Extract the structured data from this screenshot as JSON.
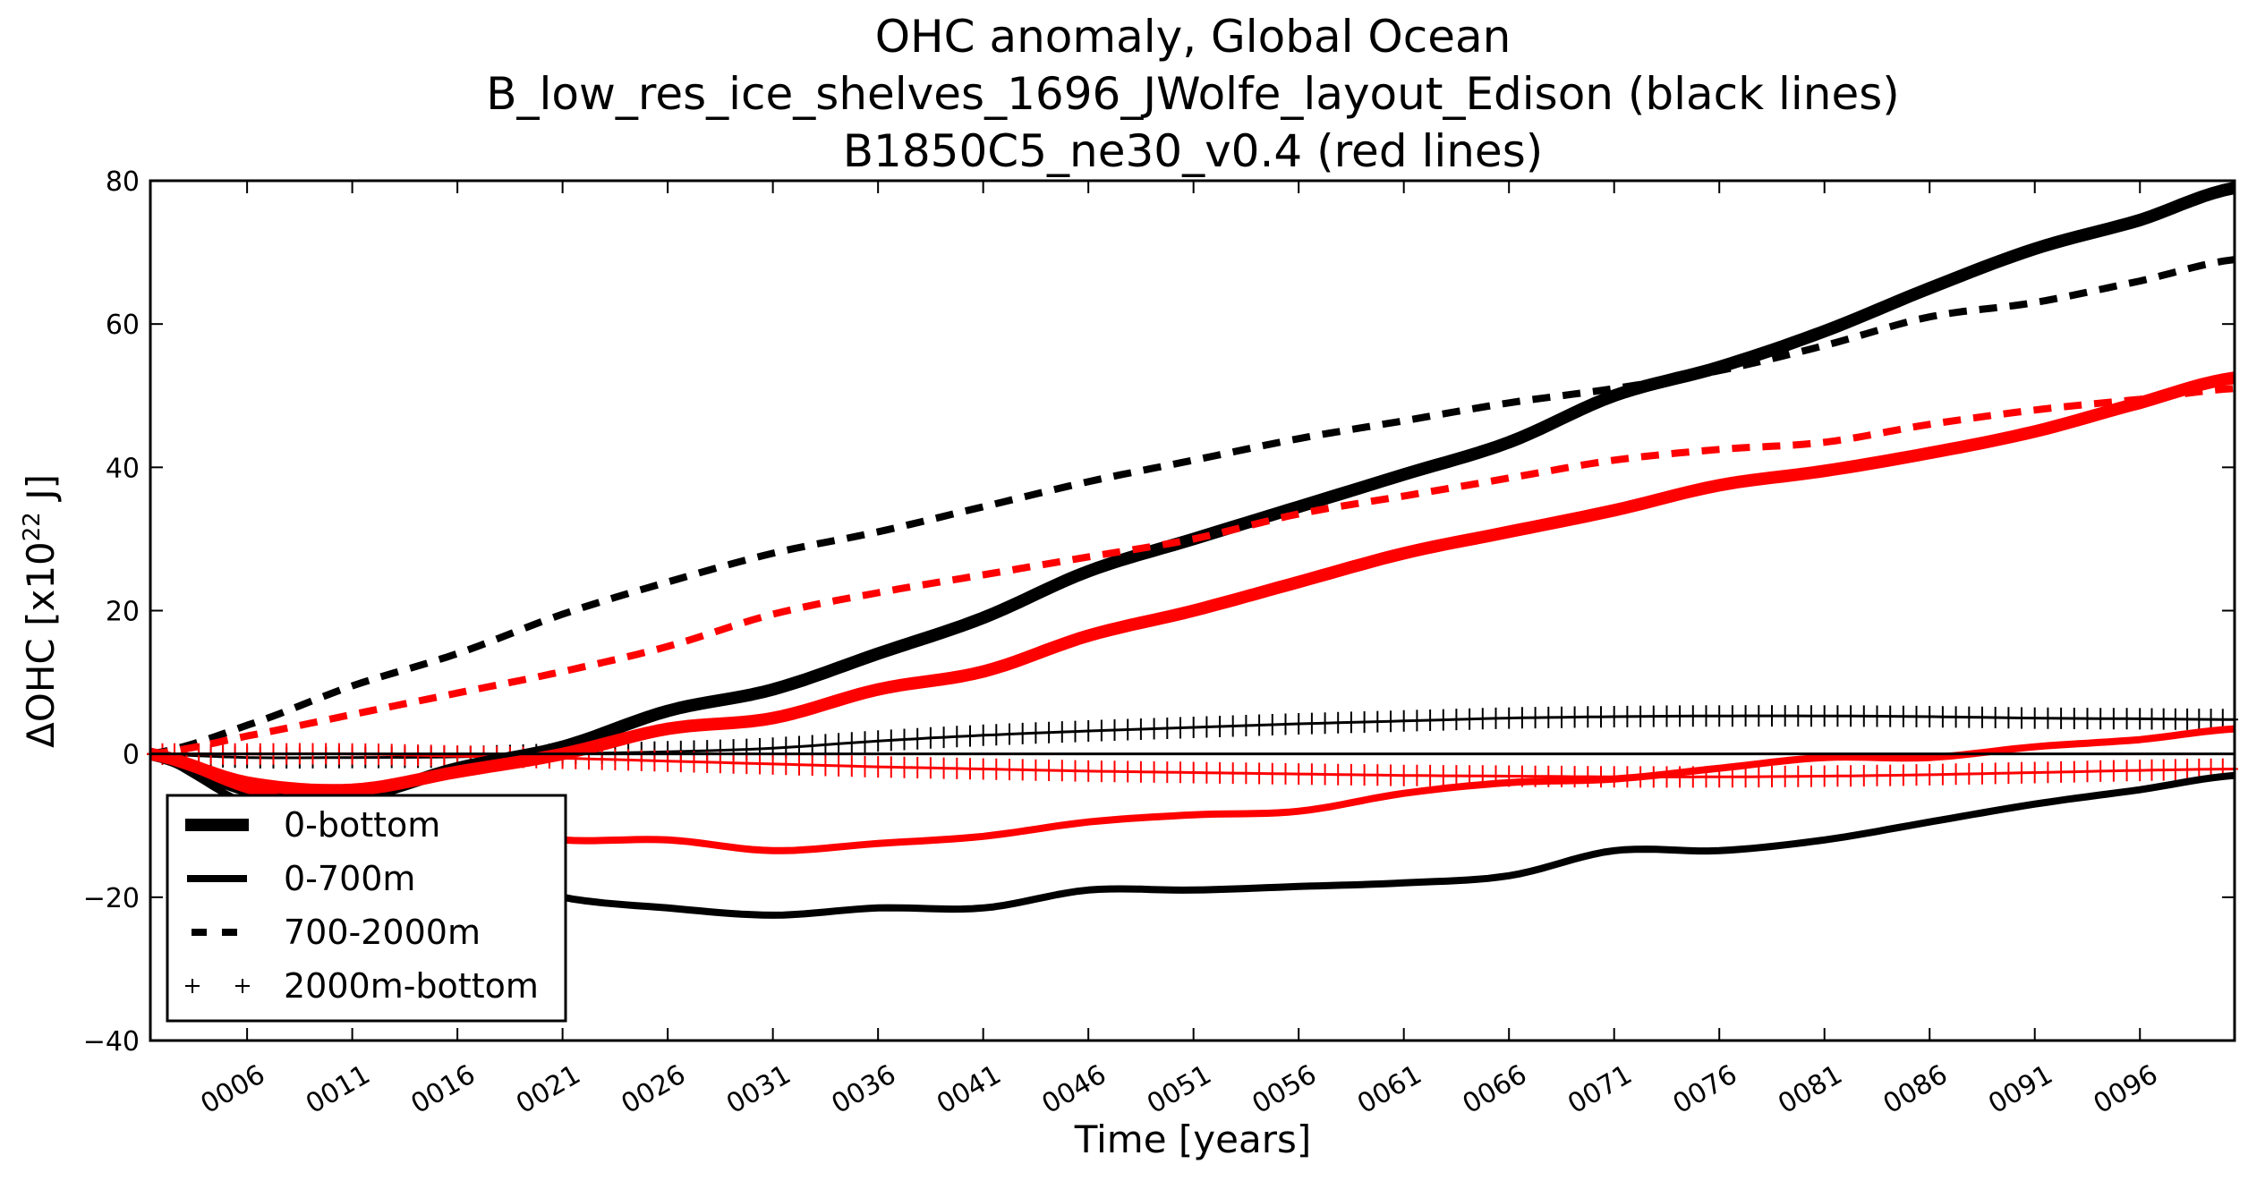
{
  "chart_data": {
    "type": "line",
    "title": [
      "OHC anomaly, Global Ocean",
      "B_low_res_ice_shelves_1696_JWolfe_layout_Edison (black lines)",
      "B1850C5_ne30_v0.4 (red lines)"
    ],
    "xlabel": "Time [years]",
    "ylabel": "ΔOHC  [x10",
    "ylabel_superscript": "22",
    "ylabel_suffix": " J]",
    "xlim": [
      1.4,
      100.5
    ],
    "ylim": [
      -40,
      80
    ],
    "yticks": [
      -40,
      -20,
      0,
      20,
      40,
      60,
      80
    ],
    "ytick_labels": [
      "−40",
      "−20",
      "0",
      "20",
      "40",
      "60",
      "80"
    ],
    "xticks": [
      6,
      11,
      16,
      21,
      26,
      31,
      36,
      41,
      46,
      51,
      56,
      61,
      66,
      71,
      76,
      81,
      86,
      91,
      96
    ],
    "xtick_labels": [
      "0006",
      "0011",
      "0016",
      "0021",
      "0026",
      "0031",
      "0036",
      "0041",
      "0046",
      "0051",
      "0056",
      "0061",
      "0066",
      "0071",
      "0076",
      "0081",
      "0086",
      "0091",
      "0096"
    ],
    "grid": false,
    "zero_line": true,
    "legend": {
      "position": "lower-left",
      "entries": [
        {
          "label": "0-bottom",
          "style": "thick-solid"
        },
        {
          "label": "0-700m",
          "style": "solid"
        },
        {
          "label": "700-2000m",
          "style": "dashed"
        },
        {
          "label": "2000m-bottom",
          "style": "plus-markers"
        }
      ]
    },
    "x": [
      1.4,
      6,
      11,
      16,
      21,
      26,
      31,
      36,
      41,
      46,
      51,
      56,
      61,
      66,
      71,
      76,
      81,
      86,
      91,
      96,
      100.5
    ],
    "series": [
      {
        "name": "0-bottom",
        "run": "B_low_res_ice_shelves_1696_JWolfe_layout_Edison",
        "color": "#000000",
        "style": "thick-solid",
        "values": [
          0,
          -5,
          -6,
          -2,
          1,
          6,
          9,
          14,
          19,
          25.5,
          30,
          34.5,
          39,
          43.5,
          50,
          54,
          59,
          65,
          70.5,
          74.5,
          79
        ]
      },
      {
        "name": "0-700m",
        "run": "B_low_res_ice_shelves_1696_JWolfe_layout_Edison",
        "color": "#000000",
        "style": "solid",
        "values": [
          0,
          -7,
          -10,
          -16,
          -20,
          -21.5,
          -22.5,
          -21.5,
          -21.5,
          -19,
          -19,
          -18.5,
          -18,
          -17,
          -13.5,
          -13.5,
          -12,
          -9.5,
          -7,
          -5,
          -3
        ]
      },
      {
        "name": "700-2000m",
        "run": "B_low_res_ice_shelves_1696_JWolfe_layout_Edison",
        "color": "#000000",
        "style": "dashed",
        "values": [
          0,
          4,
          9.5,
          14,
          19.5,
          24,
          28,
          31,
          34.5,
          38,
          41,
          44,
          46.5,
          49,
          51,
          53.5,
          57,
          61,
          63,
          66,
          69
        ]
      },
      {
        "name": "2000m-bottom",
        "run": "B_low_res_ice_shelves_1696_JWolfe_layout_Edison",
        "color": "#000000",
        "style": "plus-markers",
        "values": [
          0,
          -0.5,
          -0.5,
          -0.4,
          0,
          0.3,
          0.8,
          1.8,
          2.6,
          3.2,
          3.7,
          4.2,
          4.6,
          5,
          5.2,
          5.3,
          5.3,
          5.2,
          5,
          4.9,
          4.8
        ]
      },
      {
        "name": "0-bottom",
        "run": "B1850C5_ne30_v0.4",
        "color": "#ff0000",
        "style": "thick-solid",
        "values": [
          0,
          -4,
          -5,
          -2.5,
          0,
          3.5,
          5,
          9,
          11.5,
          16.5,
          20,
          24,
          28,
          31,
          34,
          37.5,
          39.5,
          42,
          45,
          49,
          52.5
        ]
      },
      {
        "name": "0-700m",
        "run": "B1850C5_ne30_v0.4",
        "color": "#ff0000",
        "style": "solid",
        "values": [
          0,
          -5,
          -8,
          -10,
          -12,
          -12,
          -13.5,
          -12.5,
          -11.5,
          -9.5,
          -8.5,
          -8,
          -5.5,
          -4,
          -3.5,
          -2,
          -0.5,
          -0.5,
          1,
          2,
          3.5
        ]
      },
      {
        "name": "700-2000m",
        "run": "B1850C5_ne30_v0.4",
        "color": "#ff0000",
        "style": "dashed",
        "values": [
          0,
          2.5,
          5.5,
          8.5,
          11.5,
          15,
          19.5,
          22.5,
          25,
          27.5,
          30,
          33.5,
          36,
          38.5,
          41,
          42.5,
          43.5,
          46,
          48,
          49.5,
          51
        ]
      },
      {
        "name": "2000m-bottom",
        "run": "B1850C5_ne30_v0.4",
        "color": "#ff0000",
        "style": "plus-markers",
        "values": [
          0,
          0,
          0,
          -0.3,
          -0.6,
          -1,
          -1.4,
          -1.8,
          -2.1,
          -2.4,
          -2.6,
          -2.8,
          -3,
          -3.1,
          -3.2,
          -3.2,
          -3.1,
          -2.9,
          -2.6,
          -2.3,
          -2.1
        ]
      }
    ]
  }
}
